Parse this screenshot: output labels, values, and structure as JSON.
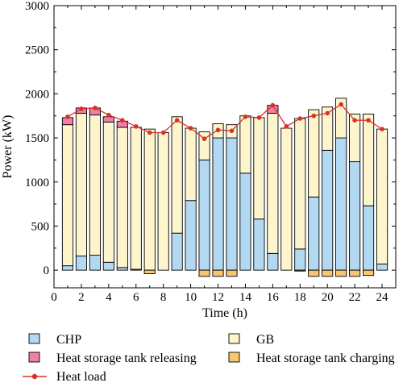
{
  "chart_data": {
    "type": "bar",
    "stacked": true,
    "xlabel": "Time (h)",
    "ylabel": "Power (kW)",
    "xlim": [
      0,
      25
    ],
    "ylim": [
      -200,
      3000
    ],
    "xticks": [
      0,
      2,
      4,
      6,
      8,
      10,
      12,
      14,
      16,
      18,
      20,
      22,
      24
    ],
    "yticks": [
      0,
      500,
      1000,
      1500,
      2000,
      2500,
      3000
    ],
    "grid": false,
    "legend_position": "bottom",
    "x": [
      1,
      2,
      3,
      4,
      5,
      6,
      7,
      8,
      9,
      10,
      11,
      12,
      13,
      14,
      15,
      16,
      17,
      18,
      19,
      20,
      21,
      22,
      23,
      24
    ],
    "series": [
      {
        "name": "CHP",
        "kind": "bar",
        "color": "#b3d9f2",
        "values": [
          50,
          160,
          170,
          90,
          30,
          10,
          0,
          0,
          420,
          790,
          1250,
          1500,
          1500,
          1100,
          580,
          190,
          0,
          240,
          830,
          1360,
          1500,
          1230,
          730,
          70
        ]
      },
      {
        "name": "GB",
        "kind": "bar",
        "color": "#fdf6cc",
        "values": [
          1600,
          1620,
          1590,
          1590,
          1590,
          1610,
          1600,
          1560,
          1320,
          820,
          320,
          160,
          150,
          650,
          1150,
          1590,
          1610,
          1480,
          990,
          490,
          450,
          540,
          1040,
          1530
        ]
      },
      {
        "name": "Heat storage tank releasing",
        "kind": "bar",
        "color": "#f07fa8",
        "values": [
          80,
          60,
          80,
          60,
          70,
          0,
          0,
          0,
          0,
          0,
          0,
          0,
          0,
          0,
          0,
          90,
          0,
          0,
          0,
          0,
          0,
          0,
          0,
          0
        ]
      },
      {
        "name": "Heat storage tank charging",
        "kind": "bar",
        "color": "#f9c56e",
        "values": [
          0,
          0,
          0,
          0,
          0,
          0,
          -40,
          0,
          0,
          0,
          -70,
          -70,
          -70,
          0,
          0,
          0,
          0,
          -10,
          -70,
          -70,
          -70,
          -70,
          -60,
          0
        ]
      },
      {
        "name": "Heat load",
        "kind": "line",
        "color": "#d8312b",
        "values": [
          1740,
          1830,
          1840,
          1760,
          1700,
          1630,
          1560,
          1560,
          1700,
          1610,
          1490,
          1590,
          1580,
          1740,
          1730,
          1870,
          1630,
          1720,
          1750,
          1780,
          1880,
          1700,
          1700,
          1600
        ]
      }
    ]
  }
}
